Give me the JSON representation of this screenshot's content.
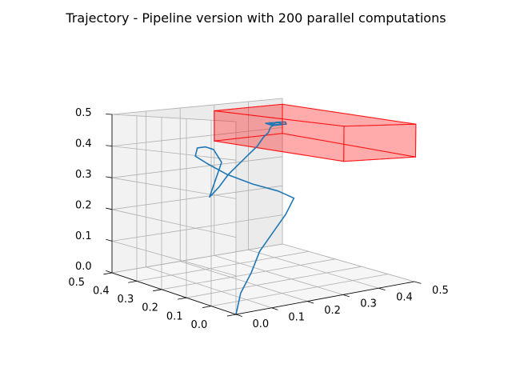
{
  "chart_data": {
    "type": "line3d",
    "title": "Trajectory - Pipeline version with 200 parallel computations",
    "xlabel": "",
    "ylabel": "",
    "zlabel": "",
    "xlim": [
      0,
      0.5
    ],
    "ylim": [
      0,
      0.5
    ],
    "zlim": [
      0,
      0.5
    ],
    "x_ticks": [
      "0.0",
      "0.1",
      "0.2",
      "0.3",
      "0.4",
      "0.5"
    ],
    "y_ticks": [
      "0.0",
      "0.1",
      "0.2",
      "0.3",
      "0.4",
      "0.5"
    ],
    "z_ticks": [
      "0.0",
      "0.1",
      "0.2",
      "0.3",
      "0.4",
      "0.5"
    ],
    "grid": true,
    "colors": {
      "trajectory": "#1f77b4",
      "obstacle": "#ff0000",
      "pane": "#f2f2f2"
    },
    "obstacle_box": {
      "x": [
        0.3,
        0.5
      ],
      "y": [
        0.0,
        0.5
      ],
      "z": [
        0.38,
        0.48
      ]
    },
    "series": [
      {
        "x": [
          0.0,
          0.02,
          0.05,
          0.08,
          0.12,
          0.16,
          0.19,
          0.16,
          0.11,
          0.05,
          0.01,
          -0.01,
          0.01,
          0.04,
          0.07,
          0.1,
          0.08,
          0.12,
          0.17,
          0.22,
          0.27,
          0.32,
          0.36,
          0.39,
          0.41,
          0.43,
          0.44,
          0.42,
          0.44,
          0.47,
          0.45,
          0.43,
          0.45,
          0.48,
          0.47,
          0.45
        ],
        "y": [
          0.0,
          0.01,
          0.01,
          0.02,
          0.02,
          0.03,
          0.04,
          0.06,
          0.09,
          0.11,
          0.13,
          0.15,
          0.17,
          0.18,
          0.19,
          0.2,
          0.22,
          0.24,
          0.27,
          0.3,
          0.33,
          0.36,
          0.39,
          0.41,
          0.43,
          0.44,
          0.45,
          0.46,
          0.46,
          0.46,
          0.45,
          0.46,
          0.47,
          0.46,
          0.45,
          0.46
        ],
        "z": [
          0.0,
          0.05,
          0.1,
          0.15,
          0.2,
          0.24,
          0.28,
          0.3,
          0.32,
          0.35,
          0.38,
          0.4,
          0.42,
          0.42,
          0.41,
          0.37,
          0.27,
          0.29,
          0.32,
          0.34,
          0.36,
          0.38,
          0.4,
          0.41,
          0.42,
          0.43,
          0.43,
          0.43,
          0.42,
          0.42,
          0.43,
          0.43,
          0.42,
          0.42,
          0.43,
          0.43
        ]
      }
    ]
  }
}
